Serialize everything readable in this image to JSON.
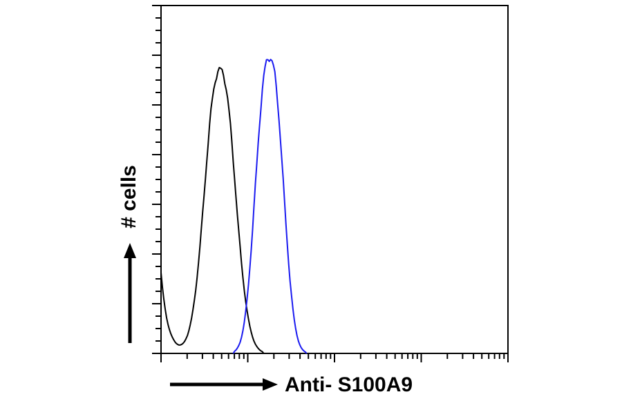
{
  "chart_data": {
    "type": "line",
    "subtype": "flow_cytometry_histogram",
    "xlabel": "Anti- S100A9",
    "ylabel": "# cells",
    "x_axis": {
      "scale": "log",
      "decades": 4,
      "tick_labels": "none"
    },
    "y_axis": {
      "scale": "linear",
      "tick_labels": "none",
      "minor_ticks": 28,
      "major_every": 4
    },
    "frame_color": "#000000",
    "background": "#ffffff",
    "series": [
      {
        "name": "black",
        "color": "#000000",
        "peak_center_decades": 0.68,
        "sigma_decades": 0.17,
        "shape_power": 2.2,
        "peak_height": 0.82,
        "edge_spike_height": 0.23,
        "edge_spike_decay": 0.08,
        "noise": 0.01,
        "noise_phase": 0
      },
      {
        "name": "blue",
        "color": "#1a1af0",
        "peak_center_decades": 1.25,
        "sigma_decades": 0.155,
        "shape_power": 2.4,
        "peak_height": 0.845,
        "edge_spike_height": 0,
        "edge_spike_decay": 0.08,
        "noise": 0.01,
        "noise_phase": 2.1
      }
    ]
  }
}
